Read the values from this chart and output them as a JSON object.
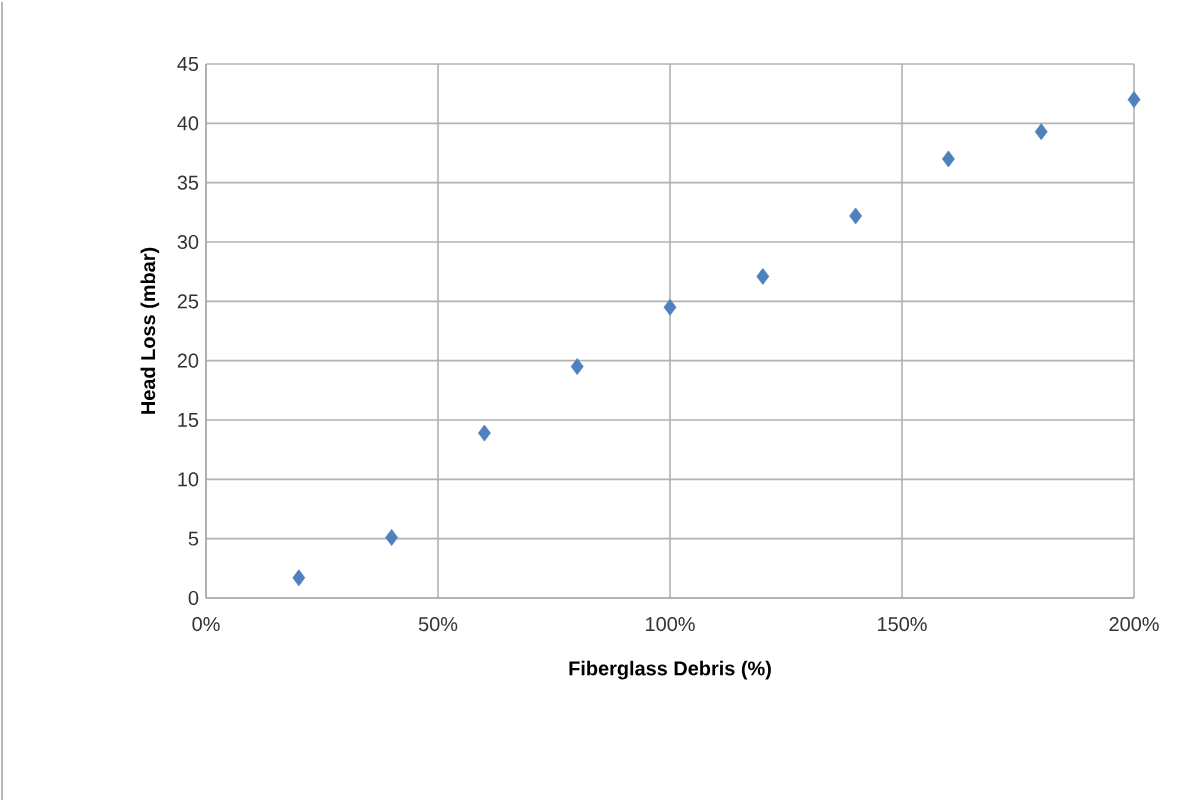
{
  "chart_data": {
    "type": "scatter",
    "xlabel": "Fiberglass Debris (%)",
    "ylabel": "Head Loss (mbar)",
    "x": [
      20,
      40,
      60,
      80,
      100,
      120,
      140,
      160,
      180,
      200
    ],
    "values": [
      1.7,
      5.1,
      13.9,
      19.5,
      24.5,
      27.1,
      32.2,
      37,
      39.3,
      42
    ],
    "color": "#4f81bd",
    "marker": "diamond",
    "grid": true,
    "xlim": [
      0,
      200
    ],
    "xticks": [
      {
        "value": 0,
        "label": "0%"
      },
      {
        "value": 50,
        "label": "50%"
      },
      {
        "value": 100,
        "label": "100%"
      },
      {
        "value": 150,
        "label": "150%"
      },
      {
        "value": 200,
        "label": "200%"
      }
    ],
    "ylim": [
      0,
      45
    ],
    "yticks": [
      0,
      5,
      10,
      15,
      20,
      25,
      30,
      35,
      40,
      45
    ]
  }
}
